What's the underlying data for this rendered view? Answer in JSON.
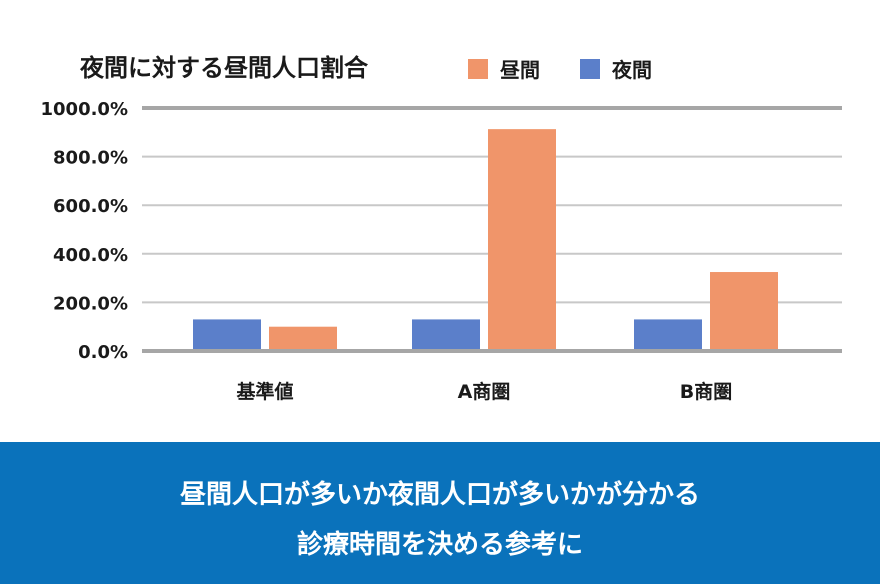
{
  "chart_data": {
    "type": "bar",
    "title": "夜間に対する昼間人口割合",
    "categories": [
      "基準値",
      "A商圏",
      "B商圏"
    ],
    "series": [
      {
        "name": "夜間",
        "color": "#5b7fca",
        "values": [
          130.0,
          130.0,
          130.0
        ]
      },
      {
        "name": "昼間",
        "color": "#f0956a",
        "values": [
          100.0,
          913.0,
          325.0
        ]
      }
    ],
    "legend_order": [
      "昼間",
      "夜間"
    ],
    "yticks": [
      "0.0%",
      "200.0%",
      "400.0%",
      "600.0%",
      "800.0%",
      "1000.0%"
    ],
    "ylim": [
      0,
      1000
    ],
    "xlabel": "",
    "ylabel": "",
    "grid": true,
    "legend_position": "top"
  },
  "banner": {
    "line1": "昼間人口が多いか夜間人口が多いかが分かる",
    "line2": "診療時間を決める参考に",
    "background": "#0a72bb"
  }
}
